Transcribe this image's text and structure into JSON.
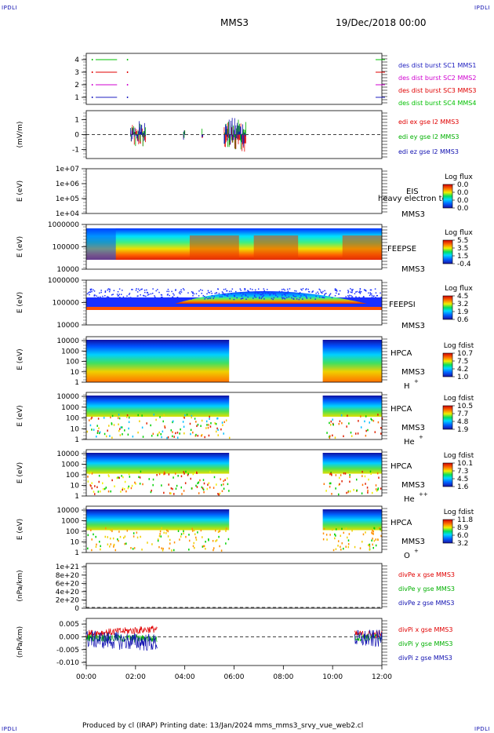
{
  "corner_labels": {
    "top_left": "IPDLI",
    "top_right": "IPDLI",
    "bottom_left": "IPDLI",
    "bottom_right": "IPDLI"
  },
  "header": {
    "mission": "MMS3",
    "date": "19/Dec/2018 00:00"
  },
  "footer": {
    "text": "Produced by cl (IRAP)   Printing date: 13/Jan/2024   mms_mms3_srvy_vue_web2.cl"
  },
  "chart_data": [
    {
      "type": "line",
      "id": "des_burst",
      "yticks": [
        "4",
        "3",
        "2",
        "1"
      ],
      "series": [
        {
          "name": "des dist burst SC1 MMS1",
          "color": "#2020c0",
          "level": 1
        },
        {
          "name": "des dist burst SC2 MMS2",
          "color": "#d000d0",
          "level": 2
        },
        {
          "name": "des dist burst SC3 MMS3",
          "color": "#e00000",
          "level": 3
        },
        {
          "name": "des dist burst SC4 MMS4",
          "color": "#00c000",
          "level": 4
        }
      ]
    },
    {
      "type": "scatter",
      "id": "edi",
      "ylabel": "(mV/m)",
      "yticks": [
        "1",
        "0",
        "-1"
      ],
      "ylim": [
        -1.6,
        1.6
      ],
      "series": [
        {
          "name": "edi ex gse l2 MMS3",
          "color": "#e00000"
        },
        {
          "name": "edi ey gse l2 MMS3",
          "color": "#00b000"
        },
        {
          "name": "edi ez gse l2 MMS3",
          "color": "#1010b0"
        }
      ]
    },
    {
      "type": "heatmap",
      "id": "eis",
      "ylabel": "E (eV)",
      "yticks": [
        "1e+07",
        "1e+06",
        "1e+05",
        "1e+04"
      ],
      "instrument": "EIS",
      "spacecraft": "MMS3",
      "overlay_text": "heavy electron to",
      "colorbar": {
        "title": "Log flux",
        "ticks": [
          "0.0",
          "0.0",
          "0.0",
          "0.0"
        ]
      }
    },
    {
      "type": "heatmap",
      "id": "feepse",
      "ylabel": "E (eV)",
      "yticks": [
        "1000000",
        "100000",
        "10000"
      ],
      "instrument": "FEEPSE",
      "spacecraft": "MMS3",
      "colorbar": {
        "title": "Log flux",
        "ticks": [
          "5.5",
          "3.5",
          "1.5",
          "-0.4"
        ]
      }
    },
    {
      "type": "heatmap",
      "id": "feepsi",
      "ylabel": "E (eV)",
      "yticks": [
        "1000000",
        "100000",
        "10000"
      ],
      "instrument": "FEEPSI",
      "spacecraft": "MMS3",
      "colorbar": {
        "title": "Log flux",
        "ticks": [
          "4.5",
          "3.2",
          "1.9",
          "0.6"
        ]
      }
    },
    {
      "type": "heatmap",
      "id": "hpca_h",
      "ylabel": "E (eV)",
      "yticks": [
        "10000",
        "1000",
        "100",
        "10",
        "1"
      ],
      "instrument": "HPCA",
      "spacecraft": "MMS3",
      "species": "H",
      "charge": "+",
      "colorbar": {
        "title": "Log fdist",
        "ticks": [
          "10.7",
          "7.5",
          "4.2",
          "1.0"
        ]
      }
    },
    {
      "type": "heatmap",
      "id": "hpca_he",
      "ylabel": "E (eV)",
      "yticks": [
        "10000",
        "1000",
        "100",
        "10",
        "1"
      ],
      "instrument": "HPCA",
      "spacecraft": "MMS3",
      "species": "He",
      "charge": "+",
      "colorbar": {
        "title": "Log fdist",
        "ticks": [
          "10.5",
          "7.7",
          "4.8",
          "1.9"
        ]
      }
    },
    {
      "type": "heatmap",
      "id": "hpca_hepp",
      "ylabel": "E (eV)",
      "yticks": [
        "10000",
        "1000",
        "100",
        "10",
        "1"
      ],
      "instrument": "HPCA",
      "spacecraft": "MMS3",
      "species": "He",
      "charge": "++",
      "colorbar": {
        "title": "Log fdist",
        "ticks": [
          "10.1",
          "7.3",
          "4.5",
          "1.6"
        ]
      }
    },
    {
      "type": "heatmap",
      "id": "hpca_o",
      "ylabel": "E (eV)",
      "yticks": [
        "10000",
        "1000",
        "100",
        "10",
        "1"
      ],
      "instrument": "HPCA",
      "spacecraft": "MMS3",
      "species": "O",
      "charge": "+",
      "colorbar": {
        "title": "Log fdist",
        "ticks": [
          "11.8",
          "8.9",
          "6.0",
          "3.2"
        ]
      }
    },
    {
      "type": "line",
      "id": "divpe",
      "ylabel": "(nPa/km)",
      "yticks": [
        "1e+21",
        "8e+20",
        "6e+20",
        "4e+20",
        "2e+20",
        "0"
      ],
      "ylim": [
        0,
        1.08e+21
      ],
      "series": [
        {
          "name": "divPe x gse MMS3",
          "color": "#e00000"
        },
        {
          "name": "divPe y gse MMS3",
          "color": "#00b000"
        },
        {
          "name": "divPe z gse MMS3",
          "color": "#1010b0"
        }
      ]
    },
    {
      "type": "line",
      "id": "divpi",
      "ylabel": "(nPa/km)",
      "yticks": [
        "0.005",
        "0.000",
        "-0.005",
        "-0.010"
      ],
      "ylim": [
        -0.0112,
        0.0072
      ],
      "series": [
        {
          "name": "divPi x gse MMS3",
          "color": "#e00000"
        },
        {
          "name": "divPi y gse MMS3",
          "color": "#00b000"
        },
        {
          "name": "divPi z gse MMS3",
          "color": "#1010b0"
        }
      ]
    }
  ],
  "time_axis": {
    "ticks": [
      "00:00",
      "02:00",
      "04:00",
      "06:00",
      "08:00",
      "10:00",
      "12:00"
    ],
    "range_hours": [
      0,
      12
    ]
  }
}
